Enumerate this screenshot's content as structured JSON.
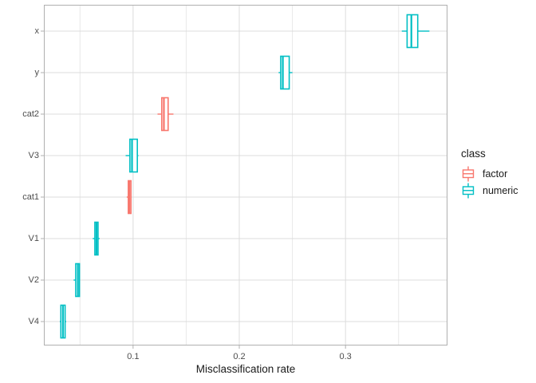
{
  "chart_data": {
    "type": "boxplot",
    "orientation": "horizontal",
    "title": "",
    "xlabel": "Misclassification rate",
    "ylabel": "",
    "xlim": [
      0.016,
      0.396
    ],
    "x_major_ticks": [
      {
        "value": 0.1,
        "label": "0.1"
      },
      {
        "value": 0.2,
        "label": "0.2"
      },
      {
        "value": 0.3,
        "label": "0.3"
      }
    ],
    "x_minor_ticks": [
      0.05,
      0.15,
      0.25,
      0.35
    ],
    "categories": [
      "x",
      "y",
      "cat2",
      "V3",
      "cat1",
      "V1",
      "V2",
      "V4"
    ],
    "boxes": [
      {
        "category": "x",
        "class": "numeric",
        "whisker_low": 0.353,
        "q1": 0.358,
        "median": 0.362,
        "q3": 0.368,
        "whisker_high": 0.379
      },
      {
        "category": "y",
        "class": "numeric",
        "whisker_low": 0.237,
        "q1": 0.239,
        "median": 0.241,
        "q3": 0.247,
        "whisker_high": 0.25
      },
      {
        "category": "cat2",
        "class": "factor",
        "whisker_low": 0.123,
        "q1": 0.127,
        "median": 0.129,
        "q3": 0.133,
        "whisker_high": 0.138
      },
      {
        "category": "V3",
        "class": "numeric",
        "whisker_low": 0.093,
        "q1": 0.097,
        "median": 0.099,
        "q3": 0.104,
        "whisker_high": 0.105
      },
      {
        "category": "cat1",
        "class": "factor",
        "whisker_low": 0.094,
        "q1": 0.0955,
        "median": 0.0965,
        "q3": 0.098,
        "whisker_high": 0.098
      },
      {
        "category": "V1",
        "class": "numeric",
        "whisker_low": 0.062,
        "q1": 0.064,
        "median": 0.0655,
        "q3": 0.067,
        "whisker_high": 0.0685
      },
      {
        "category": "V2",
        "class": "numeric",
        "whisker_low": 0.044,
        "q1": 0.046,
        "median": 0.048,
        "q3": 0.0495,
        "whisker_high": 0.0495
      },
      {
        "category": "V4",
        "class": "numeric",
        "whisker_low": 0.031,
        "q1": 0.032,
        "median": 0.034,
        "q3": 0.036,
        "whisker_high": 0.037
      }
    ],
    "legend": {
      "title": "class",
      "position": "right",
      "entries": [
        {
          "label": "factor",
          "color": "#F8766D"
        },
        {
          "label": "numeric",
          "color": "#00BFC4"
        }
      ]
    },
    "colors": {
      "factor": "#F8766D",
      "numeric": "#00BFC4",
      "box_fill": "#FFFFFF",
      "panel_background": "#FFFFFF",
      "panel_border": "#B0B0B0",
      "grid_major": "#DCDCDC",
      "grid_minor": "#E8E8E8",
      "tick_mark": "#B0B0B0",
      "tick_label": "#4D4D4D",
      "axis_title": "#1A1A1A"
    },
    "grid": true
  }
}
